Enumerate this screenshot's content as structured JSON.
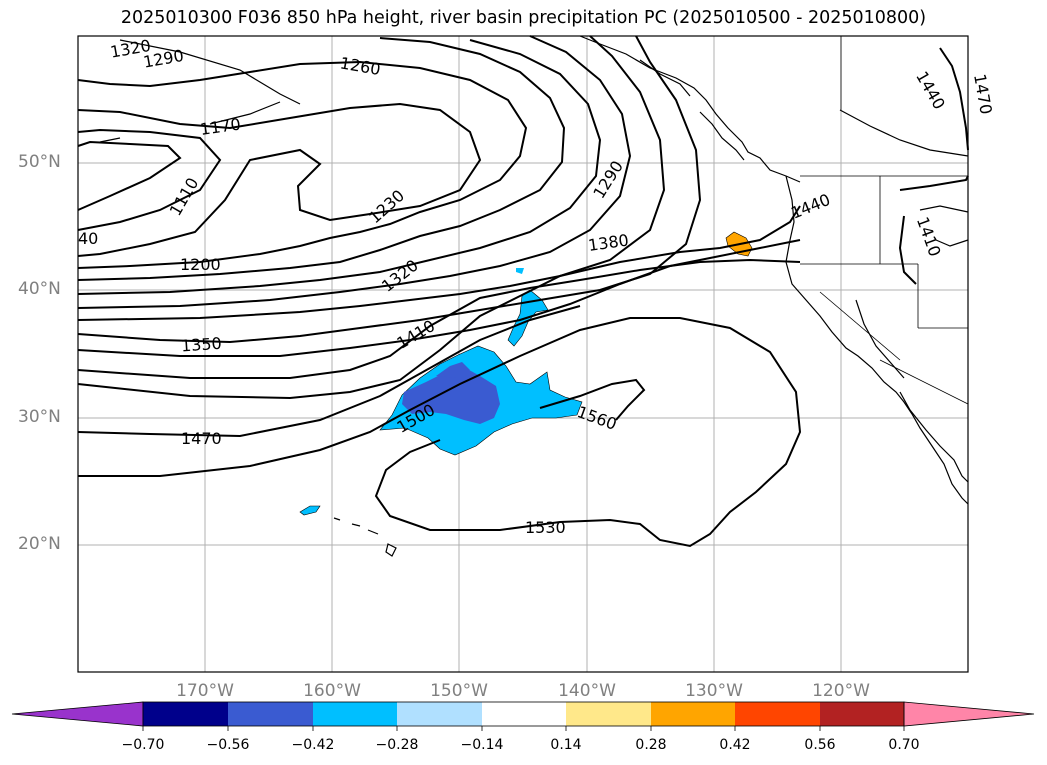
{
  "title": "2025010300 F036 850 hPa height, river basin precipitation PC (2025010500 - 2025010800)",
  "latitude_labels": [
    "50°N",
    "40°N",
    "30°N",
    "20°N"
  ],
  "longitude_labels": [
    "170°W",
    "160°W",
    "150°W",
    "140°W",
    "130°W",
    "120°W"
  ],
  "contour_labels": [
    "1320",
    "1290",
    "1260",
    "1170",
    "1110",
    "40",
    "1230",
    "1290",
    "1200",
    "1320",
    "1380",
    "1350",
    "1410",
    "1440",
    "1410",
    "1500",
    "1470",
    "1560",
    "1530",
    "1440",
    "1470"
  ],
  "colorbar": {
    "ticks": [
      "−0.70",
      "−0.56",
      "−0.42",
      "−0.28",
      "−0.14",
      "0.14",
      "0.28",
      "0.42",
      "0.56",
      "0.70"
    ],
    "colors": [
      "#9933cc",
      "#00008b",
      "#3a5bd1",
      "#00bfff",
      "#b0e0ff",
      "#ffffff",
      "#ffe88a",
      "#ffa500",
      "#ff4500",
      "#b22222",
      "#ff85a8"
    ]
  }
}
